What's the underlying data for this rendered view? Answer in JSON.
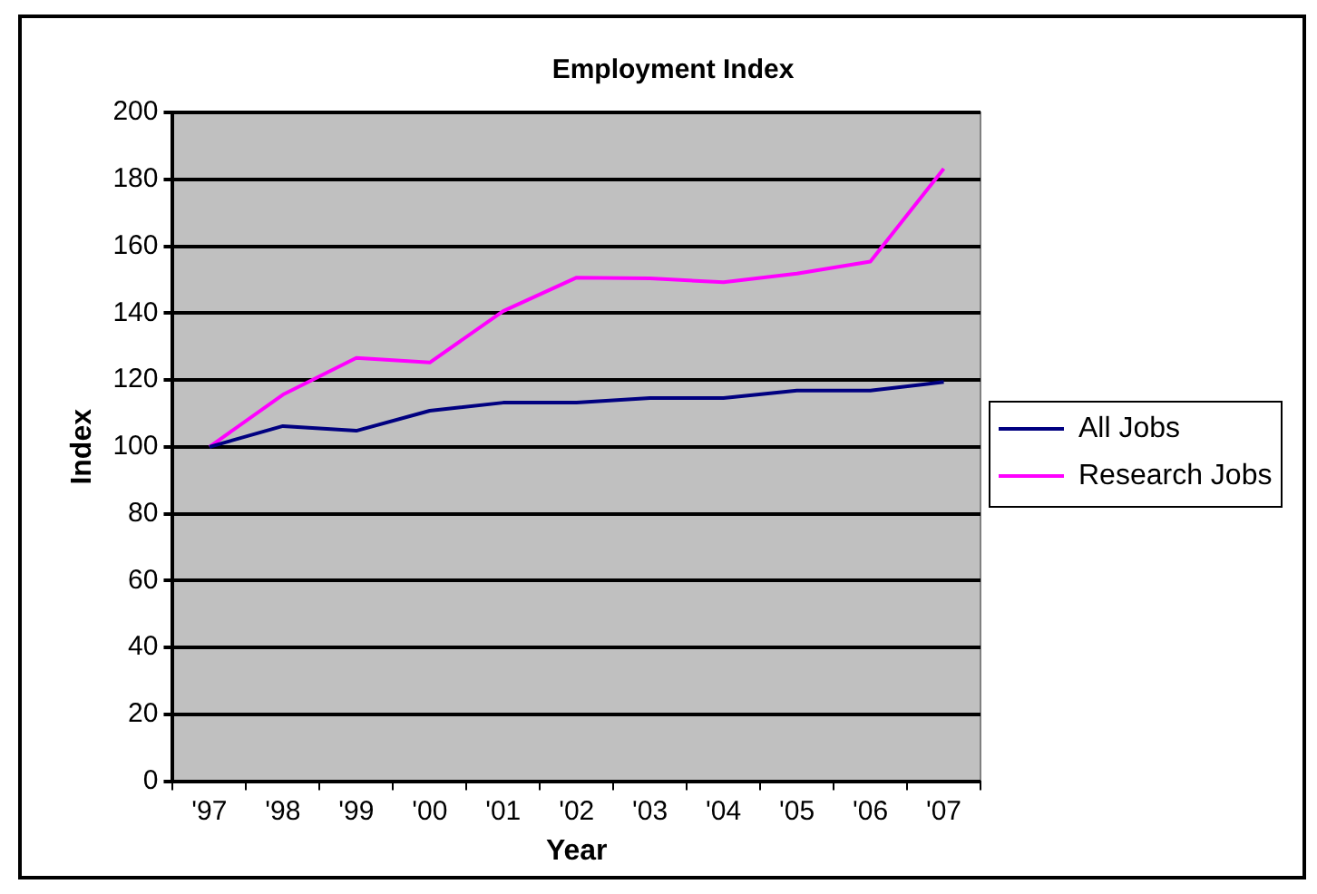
{
  "chart_data": {
    "type": "line",
    "title": "Employment Index",
    "xlabel": "Year",
    "ylabel": "Index",
    "categories": [
      "'97",
      "'98",
      "'99",
      "'00",
      "'01",
      "'02",
      "'03",
      "'04",
      "'05",
      "'06",
      "'07"
    ],
    "series": [
      {
        "name": "All Jobs",
        "color": "#000080",
        "values": [
          100,
          106.2,
          104.8,
          110.8,
          113.2,
          113.2,
          114.6,
          114.6,
          116.8,
          116.8,
          119.4
        ]
      },
      {
        "name": "Research Jobs",
        "color": "#ff00ff",
        "values": [
          100,
          115.6,
          126.6,
          125.2,
          140.6,
          150.6,
          150.4,
          149.2,
          151.8,
          155.4,
          183.2
        ]
      }
    ],
    "ylim": [
      0,
      200
    ],
    "yticks": [
      0,
      20,
      40,
      60,
      80,
      100,
      120,
      140,
      160,
      180,
      200
    ],
    "grid": "y",
    "legend": "right",
    "marker": "none",
    "line_style": "solid"
  }
}
